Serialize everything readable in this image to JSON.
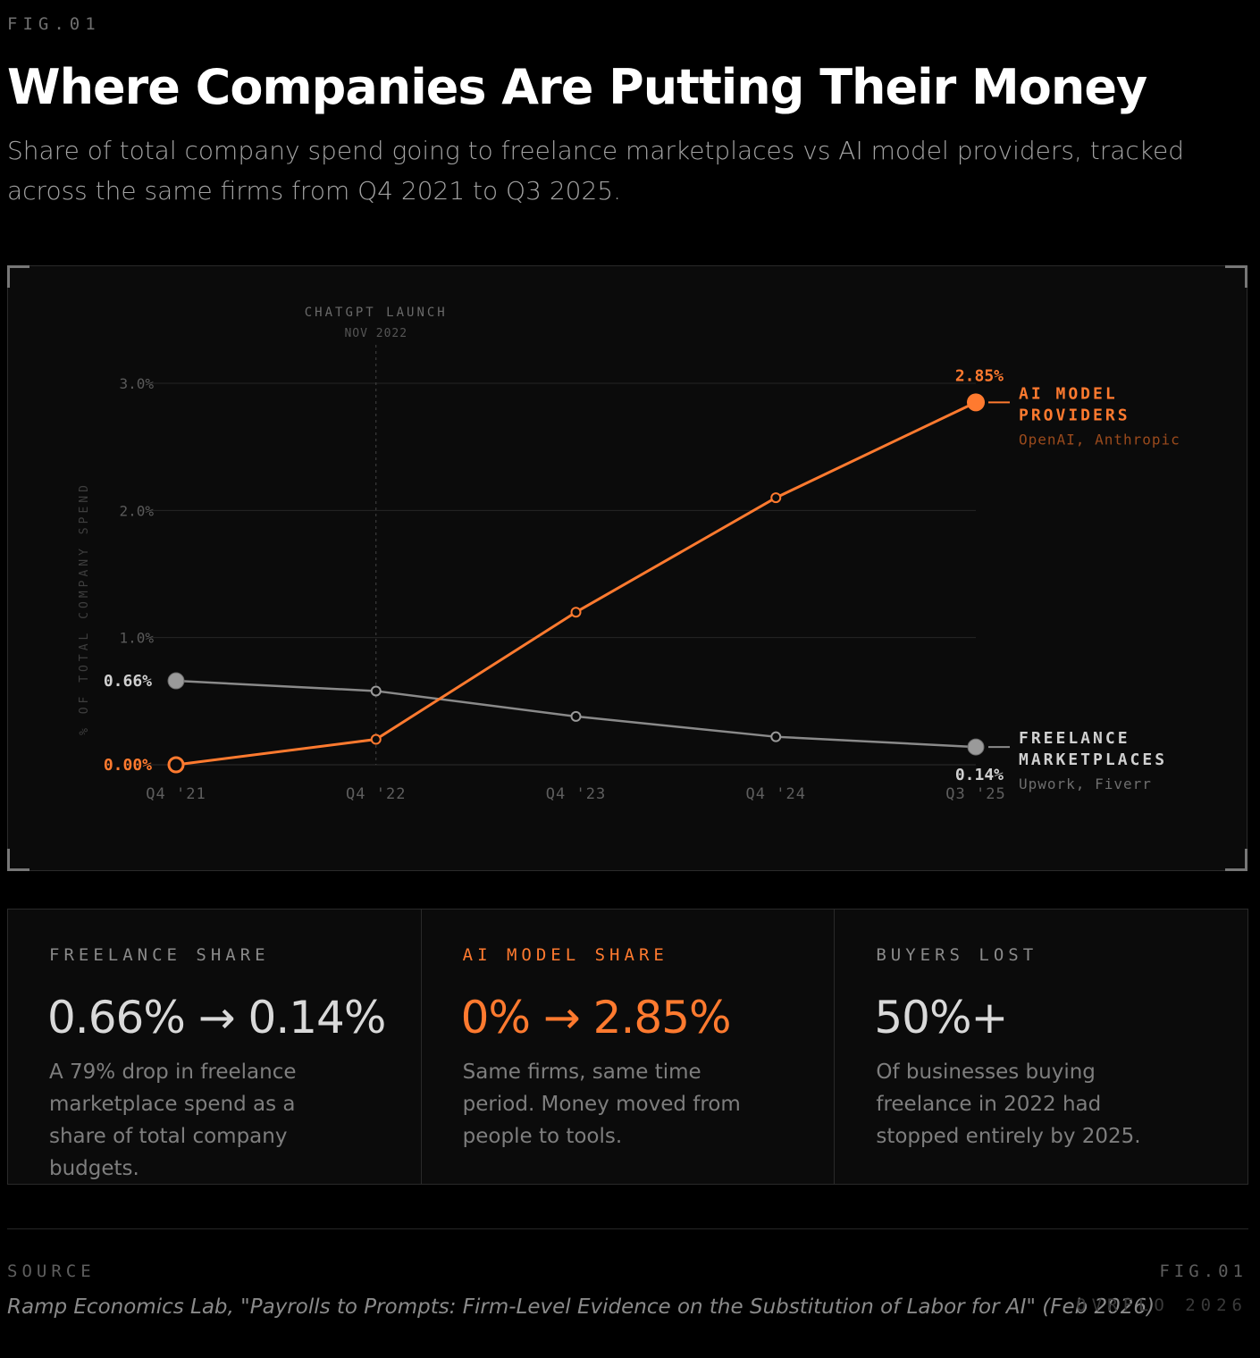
{
  "header": {
    "fig_label": "FIG.01",
    "title": "Where Companies Are Putting Their Money",
    "subtitle": "Share of total company spend going to freelance marketplaces vs AI model providers, tracked across the same firms from Q4 2021 to Q3 2025."
  },
  "chart_data": {
    "type": "line",
    "categories": [
      "Q4 '21",
      "Q4 '22",
      "Q4 '23",
      "Q4 '24",
      "Q3 '25"
    ],
    "ylabel": "% OF TOTAL COMPANY SPEND",
    "xlabel": "",
    "ylim": [
      0,
      3.0
    ],
    "y_ticks": [
      1.0,
      2.0,
      3.0
    ],
    "y_tick_labels": [
      "1.0%",
      "2.0%",
      "3.0%"
    ],
    "grid": true,
    "series": [
      {
        "name": "AI MODEL PROVIDERS",
        "name_lines": [
          "AI MODEL",
          "PROVIDERS"
        ],
        "sub_label": "OpenAI, Anthropic",
        "color": "#ff7a2f",
        "values": [
          0.0,
          0.2,
          1.2,
          2.1,
          2.85
        ],
        "start_label": "0.00%",
        "end_label": "2.85%"
      },
      {
        "name": "FREELANCE MARKETPLACES",
        "name_lines": [
          "FREELANCE",
          "MARKETPLACES"
        ],
        "sub_label": "Upwork, Fiverr",
        "color": "#8a8a8a",
        "values": [
          0.66,
          0.58,
          0.38,
          0.22,
          0.14
        ],
        "start_label": "0.66%",
        "end_label": "0.14%"
      }
    ],
    "annotations": [
      {
        "category_index": 1,
        "title": "CHATGPT LAUNCH",
        "subtitle": "NOV 2022"
      }
    ]
  },
  "stats": [
    {
      "label": "FREELANCE SHARE",
      "value": "0.66% → 0.14%",
      "description": "A 79% drop in freelance marketplace spend as a share of total company budgets.",
      "accent": false
    },
    {
      "label": "AI MODEL SHARE",
      "value": "0% → 2.85%",
      "description": "Same firms, same time period. Money moved from people to tools.",
      "accent": true
    },
    {
      "label": "BUYERS LOST",
      "value": "50%+",
      "description": "Of businesses buying freelance in 2022 had stopped entirely by 2025.",
      "accent": false
    }
  ],
  "footer": {
    "source_label": "SOURCE",
    "source_text": "Ramp Economics Lab, \"Payrolls to Prompts: Firm-Level Evidence on the Substitution of Labor for AI\" (Feb 2026)",
    "fig_label": "FIG.01",
    "brand": "OVRFLO 2026"
  }
}
